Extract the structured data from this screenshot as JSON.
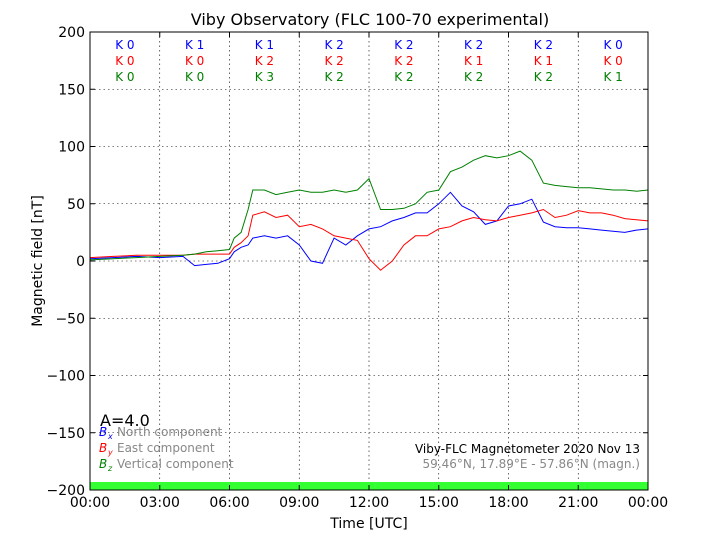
{
  "chart_data": {
    "type": "line",
    "title": "Viby Observatory (FLC 100-70 experimental)",
    "xlabel": "Time [UTC]",
    "ylabel": "Magnetic field [nT]",
    "xlim": [
      0,
      24
    ],
    "ylim": [
      -200,
      200
    ],
    "x_ticks": [
      0,
      3,
      6,
      9,
      12,
      15,
      18,
      21,
      24
    ],
    "x_tick_labels": [
      "00:00",
      "03:00",
      "06:00",
      "09:00",
      "12:00",
      "15:00",
      "18:00",
      "21:00",
      "00:00"
    ],
    "y_ticks": [
      -200,
      -150,
      -100,
      -50,
      0,
      50,
      100,
      150,
      200
    ],
    "y_tick_labels": [
      "−200",
      "−150",
      "−100",
      "−50",
      "0",
      "50",
      "100",
      "150",
      "200"
    ],
    "grid": true,
    "k_index": {
      "rows": [
        {
          "color": "#0000ff",
          "labels": [
            "K 0",
            "K 1",
            "K 1",
            "K 2",
            "K 2",
            "K 2",
            "K 2",
            "K 0"
          ]
        },
        {
          "color": "#ff0000",
          "labels": [
            "K 0",
            "K 0",
            "K 2",
            "K 2",
            "K 2",
            "K 1",
            "K 1",
            "K 0"
          ]
        },
        {
          "color": "#008000",
          "labels": [
            "K 0",
            "K 0",
            "K 3",
            "K 2",
            "K 2",
            "K 2",
            "K 2",
            "K 1"
          ]
        }
      ]
    },
    "a_index": "A=4.0",
    "legend": {
      "placement": "bottom-left",
      "entries": [
        {
          "symbol": "B",
          "sub": "x",
          "label": "North component",
          "color": "#0000ff"
        },
        {
          "symbol": "B",
          "sub": "y",
          "label": "East component",
          "color": "#ff0000"
        },
        {
          "symbol": "B",
          "sub": "z",
          "label": "Vertical component",
          "color": "#008000"
        }
      ]
    },
    "annotation_line1": "Viby-FLC Magnetometer 2020 Nov 13",
    "annotation_line2": "59.46°N, 17.89°E - 57.86°N (magn.)",
    "activity_bar": {
      "color": "#33ff33",
      "range": [
        -200,
        -193
      ]
    },
    "series": [
      {
        "name": "North component",
        "color": "#0000ff",
        "x": [
          0,
          1,
          2,
          3,
          4,
          4.5,
          5,
          5.5,
          6,
          6.2,
          6.5,
          6.8,
          7,
          7.5,
          8,
          8.5,
          9,
          9.5,
          10,
          10.5,
          11,
          11.5,
          12,
          12.5,
          13,
          13.5,
          14,
          14.5,
          15,
          15.5,
          16,
          16.5,
          17,
          17.5,
          18,
          18.5,
          19,
          19.5,
          20,
          20.5,
          21,
          21.5,
          22,
          22.5,
          23,
          23.5,
          24
        ],
        "y": [
          2,
          3,
          4,
          3,
          4,
          -4,
          -3,
          -2,
          2,
          8,
          12,
          14,
          20,
          22,
          20,
          22,
          14,
          0,
          -2,
          20,
          14,
          22,
          28,
          30,
          35,
          38,
          42,
          42,
          50,
          60,
          48,
          43,
          32,
          35,
          48,
          50,
          54,
          34,
          30,
          29,
          29,
          28,
          27,
          26,
          25,
          27,
          28
        ]
      },
      {
        "name": "East component",
        "color": "#ff0000",
        "x": [
          0,
          1,
          2,
          3,
          4,
          4.5,
          5,
          5.5,
          6,
          6.2,
          6.5,
          6.8,
          7,
          7.5,
          8,
          8.5,
          9,
          9.5,
          10,
          10.5,
          11,
          11.5,
          12,
          12.5,
          13,
          13.5,
          14,
          14.5,
          15,
          15.5,
          16,
          16.5,
          17,
          17.5,
          18,
          18.5,
          19,
          19.5,
          20,
          20.5,
          21,
          21.5,
          22,
          22.5,
          23,
          23.5,
          24
        ],
        "y": [
          3,
          4,
          5,
          5,
          5,
          6,
          6,
          6,
          6,
          12,
          16,
          22,
          40,
          43,
          38,
          40,
          30,
          32,
          28,
          22,
          20,
          18,
          2,
          -8,
          0,
          14,
          22,
          22,
          28,
          30,
          35,
          38,
          36,
          35,
          38,
          40,
          42,
          45,
          38,
          40,
          44,
          42,
          42,
          40,
          37,
          36,
          35
        ]
      },
      {
        "name": "Vertical component",
        "color": "#008000",
        "x": [
          0,
          1,
          2,
          3,
          4,
          4.5,
          5,
          5.5,
          6,
          6.2,
          6.5,
          6.8,
          7,
          7.5,
          8,
          8.5,
          9,
          9.5,
          10,
          10.5,
          11,
          11.5,
          12,
          12.5,
          13,
          13.5,
          14,
          14.5,
          15,
          15.5,
          16,
          16.5,
          17,
          17.5,
          18,
          18.5,
          19,
          19.5,
          20,
          20.5,
          21,
          21.5,
          22,
          22.5,
          23,
          23.5,
          24
        ],
        "y": [
          1,
          2,
          3,
          4,
          5,
          6,
          8,
          9,
          10,
          20,
          25,
          45,
          62,
          62,
          58,
          60,
          62,
          60,
          60,
          62,
          60,
          62,
          72,
          45,
          45,
          46,
          50,
          60,
          62,
          78,
          82,
          88,
          92,
          90,
          92,
          96,
          88,
          68,
          66,
          65,
          64,
          64,
          63,
          62,
          62,
          61,
          62
        ]
      }
    ]
  }
}
